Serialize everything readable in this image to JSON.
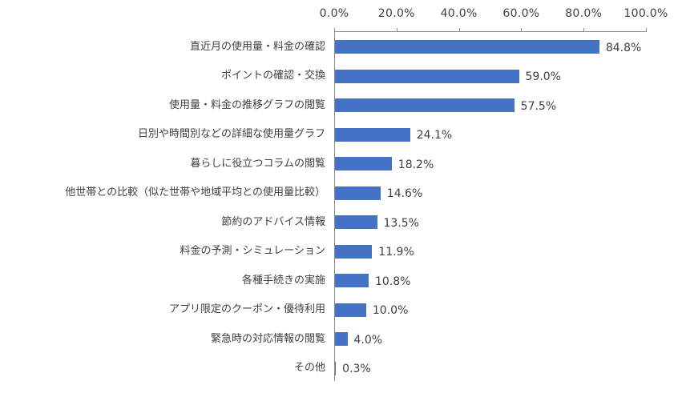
{
  "chart_data": {
    "type": "bar",
    "orientation": "horizontal",
    "title": "",
    "xlabel": "",
    "ylabel": "",
    "xlim": [
      0,
      100
    ],
    "x_tick_labels": [
      "0.0%",
      "20.0%",
      "40.0%",
      "60.0%",
      "80.0%",
      "100.0%"
    ],
    "x_axis_position": "top",
    "grid": false,
    "legend": null,
    "bar_color": "#4472c4",
    "categories": [
      "直近月の使用量・料金の確認",
      "ポイントの確認・交換",
      "使用量・料金の推移グラフの閲覧",
      "日別や時間別などの詳細な使用量グラフ",
      "暮らしに役立つコラムの閲覧",
      "他世帯との比較（似た世帯や地域平均との使用量比較）",
      "節約のアドバイス情報",
      "料金の予測・シミュレーション",
      "各種手続きの実施",
      "アプリ限定のクーポン・優待利用",
      "緊急時の対応情報の閲覧",
      "その他"
    ],
    "values": [
      84.8,
      59.0,
      57.5,
      24.1,
      18.2,
      14.6,
      13.5,
      11.9,
      10.8,
      10.0,
      4.0,
      0.3
    ],
    "value_labels": [
      "84.8%",
      "59.0%",
      "57.5%",
      "24.1%",
      "18.2%",
      "14.6%",
      "13.5%",
      "11.9%",
      "10.8%",
      "10.0%",
      "4.0%",
      "0.3%"
    ]
  }
}
